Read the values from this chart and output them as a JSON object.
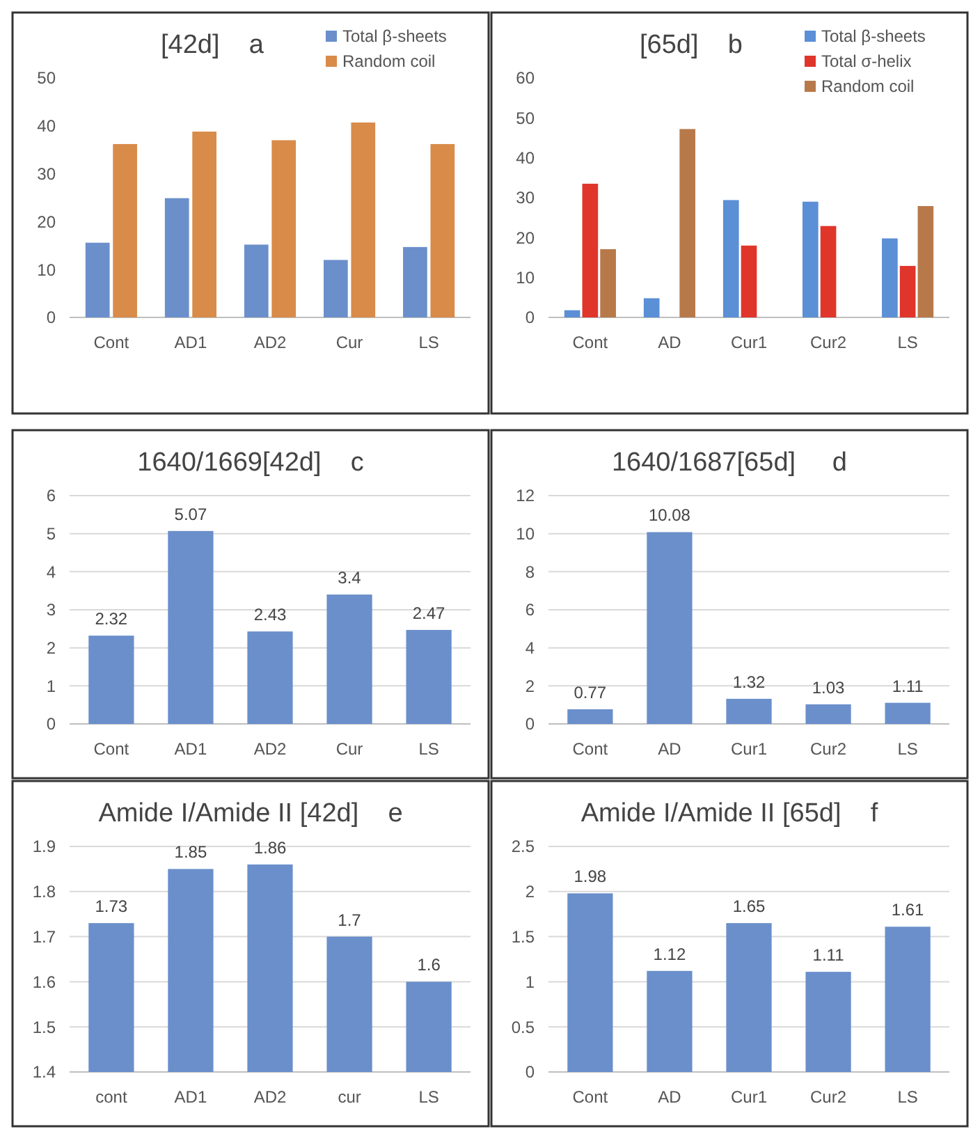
{
  "chart_data": [
    {
      "type": "bar",
      "title": "[42d]    a",
      "categories": [
        "Cont",
        "AD1",
        "AD2",
        "Cur",
        "LS"
      ],
      "series": [
        {
          "name": "Total β-sheets",
          "color": "#6a8fcb",
          "values": [
            15.6,
            24.9,
            15.2,
            12,
            14.7
          ]
        },
        {
          "name": "Random coil",
          "color": "#d98b4a",
          "values": [
            36.2,
            38.8,
            37,
            40.7,
            36.2
          ]
        }
      ],
      "ylim": [
        0,
        50
      ],
      "yticks": [
        0,
        10,
        20,
        30,
        40,
        50
      ],
      "grid": false,
      "legend": "top right"
    },
    {
      "type": "bar",
      "title": "[65d]    b",
      "categories": [
        "Cont",
        "AD",
        "Cur1",
        "Cur2",
        "LS"
      ],
      "series": [
        {
          "name": "Total β-sheets",
          "color": "#5b8fd6",
          "values": [
            1.8,
            4.8,
            29.4,
            29,
            19.8
          ]
        },
        {
          "name": "Total σ-helix",
          "color": "#e0352b",
          "values": [
            33.5,
            null,
            18,
            22.9,
            12.9
          ]
        },
        {
          "name": "Random coil",
          "color": "#b8794a",
          "values": [
            17.1,
            47.2,
            null,
            null,
            27.9
          ]
        }
      ],
      "ylim": [
        0,
        60
      ],
      "yticks": [
        0,
        10,
        20,
        30,
        40,
        50,
        60
      ],
      "grid": false,
      "legend": "top right"
    },
    {
      "type": "bar",
      "title": "1640/1669[42d]    c",
      "categories": [
        "Cont",
        "AD1",
        "AD2",
        "Cur",
        "LS"
      ],
      "color": "#6a8fcb",
      "values": [
        2.32,
        5.07,
        2.43,
        3.4,
        2.47
      ],
      "ylim": [
        0,
        6
      ],
      "yticks": [
        0,
        1,
        2,
        3,
        4,
        5,
        6
      ],
      "grid": true,
      "data_labels": true
    },
    {
      "type": "bar",
      "title": "1640/1687[65d]     d",
      "categories": [
        "Cont",
        "AD",
        "Cur1",
        "Cur2",
        "LS"
      ],
      "color": "#6a8fcb",
      "values": [
        0.77,
        10.08,
        1.32,
        1.03,
        1.11
      ],
      "ylim": [
        0,
        12
      ],
      "yticks": [
        0,
        2,
        4,
        6,
        8,
        10,
        12
      ],
      "grid": true,
      "data_labels": true
    },
    {
      "type": "bar",
      "title": "Amide I/Amide II [42d]    e",
      "categories": [
        "cont",
        "AD1",
        "AD2",
        "cur",
        "LS"
      ],
      "color": "#6a8fcb",
      "values": [
        1.73,
        1.85,
        1.86,
        1.7,
        1.6
      ],
      "ylim": [
        1.4,
        1.9
      ],
      "yticks": [
        1.4,
        1.5,
        1.6,
        1.7,
        1.8,
        1.9
      ],
      "grid": true,
      "data_labels": true
    },
    {
      "type": "bar",
      "title": "Amide I/Amide II [65d]    f",
      "categories": [
        "Cont",
        "AD",
        "Cur1",
        "Cur2",
        "LS"
      ],
      "color": "#6a8fcb",
      "values": [
        1.98,
        1.12,
        1.65,
        1.11,
        1.61
      ],
      "ylim": [
        0,
        2.5
      ],
      "yticks": [
        0,
        0.5,
        1,
        1.5,
        2,
        2.5
      ],
      "grid": true,
      "data_labels": true
    }
  ]
}
